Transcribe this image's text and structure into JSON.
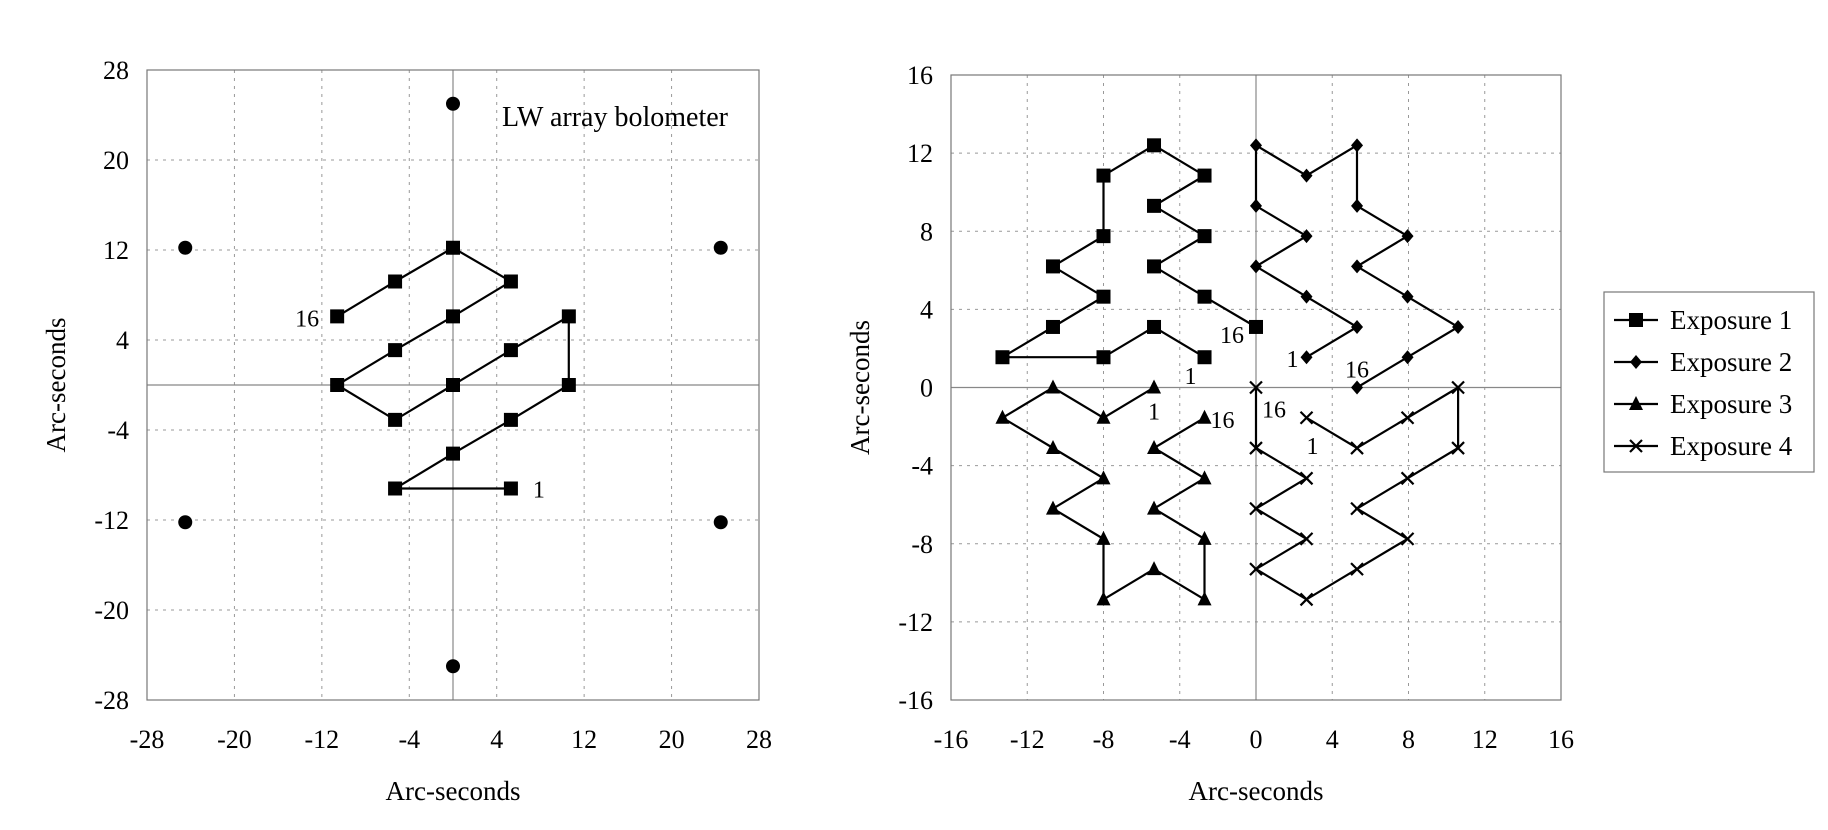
{
  "chart_data": [
    {
      "type": "scatter",
      "title": "LW array bolometer",
      "xlabel": "Arc-seconds",
      "ylabel": "Arc-seconds",
      "xlim": [
        -28,
        28
      ],
      "ylim": [
        -28,
        28
      ],
      "xticks": [
        "-28",
        "-20",
        "-12",
        "-4",
        "4",
        "12",
        "20",
        "28"
      ],
      "yticks": [
        "28",
        "20",
        "12",
        "4",
        "-4",
        "-12",
        "-20",
        "-28"
      ],
      "grid": true,
      "series": [
        {
          "marker": "circle",
          "line": false,
          "points": [
            [
              0,
              25
            ],
            [
              -24.5,
              12.2
            ],
            [
              24.5,
              12.2
            ],
            [
              -24.5,
              -12.2
            ],
            [
              24.5,
              -12.2
            ],
            [
              0,
              -25
            ]
          ]
        },
        {
          "marker": "square",
          "line": true,
          "points": [
            [
              5.3,
              -9.2
            ],
            [
              -5.3,
              -9.2
            ],
            [
              0,
              -6.1
            ],
            [
              5.3,
              -3.1
            ],
            [
              10.6,
              0
            ],
            [
              10.6,
              6.1
            ],
            [
              5.3,
              3.1
            ],
            [
              0,
              0
            ],
            [
              -5.3,
              -3.1
            ],
            [
              -10.6,
              0
            ],
            [
              -5.3,
              3.1
            ],
            [
              0,
              6.1
            ],
            [
              5.3,
              9.2
            ],
            [
              0,
              12.2
            ],
            [
              -5.3,
              9.2
            ],
            [
              -10.6,
              6.1
            ]
          ]
        }
      ],
      "annotations": [
        {
          "text": "1",
          "x": 5.3,
          "y": -9.2
        },
        {
          "text": "16",
          "x": -10.6,
          "y": 6.1
        }
      ]
    },
    {
      "type": "line",
      "xlabel": "Arc-seconds",
      "ylabel": "Arc-seconds",
      "xlim": [
        -16,
        16
      ],
      "ylim": [
        -16,
        16
      ],
      "xticks": [
        "-16",
        "-12",
        "-8",
        "-4",
        "0",
        "4",
        "8",
        "12",
        "16"
      ],
      "yticks": [
        "16",
        "12",
        "8",
        "4",
        "0",
        "-4",
        "-8",
        "-12",
        "-16"
      ],
      "grid": true,
      "legend": "right",
      "series": [
        {
          "name": "Exposure 1",
          "marker": "square",
          "points": [
            [
              -2.7,
              1.55
            ],
            [
              -5.35,
              3.1
            ],
            [
              -8.0,
              1.55
            ],
            [
              -13.3,
              1.55
            ],
            [
              -10.65,
              3.1
            ],
            [
              -8.0,
              4.65
            ],
            [
              -10.65,
              6.2
            ],
            [
              -8.0,
              7.75
            ],
            [
              -8.0,
              10.85
            ],
            [
              -5.35,
              12.4
            ],
            [
              -2.7,
              10.85
            ],
            [
              -5.35,
              9.3
            ],
            [
              -2.7,
              7.75
            ],
            [
              -5.35,
              6.2
            ],
            [
              -2.7,
              4.65
            ],
            [
              0,
              3.1
            ]
          ]
        },
        {
          "name": "Exposure 2",
          "marker": "diamond",
          "points": [
            [
              2.65,
              1.55
            ],
            [
              5.3,
              3.1
            ],
            [
              2.65,
              4.65
            ],
            [
              0,
              6.2
            ],
            [
              2.65,
              7.75
            ],
            [
              0,
              9.3
            ],
            [
              0,
              12.4
            ],
            [
              2.65,
              10.85
            ],
            [
              5.3,
              12.4
            ],
            [
              5.3,
              9.3
            ],
            [
              7.95,
              7.75
            ],
            [
              5.3,
              6.2
            ],
            [
              7.95,
              4.65
            ],
            [
              10.6,
              3.1
            ],
            [
              7.95,
              1.55
            ],
            [
              5.3,
              0
            ]
          ]
        },
        {
          "name": "Exposure 3",
          "marker": "triangle",
          "points": [
            [
              -5.35,
              0
            ],
            [
              -8.0,
              -1.55
            ],
            [
              -10.65,
              0
            ],
            [
              -13.3,
              -1.55
            ],
            [
              -10.65,
              -3.1
            ],
            [
              -8.0,
              -4.65
            ],
            [
              -10.65,
              -6.2
            ],
            [
              -8.0,
              -7.75
            ],
            [
              -8.0,
              -10.85
            ],
            [
              -5.35,
              -9.3
            ],
            [
              -2.7,
              -10.85
            ],
            [
              -2.7,
              -7.75
            ],
            [
              -5.35,
              -6.2
            ],
            [
              -2.7,
              -4.65
            ],
            [
              -5.35,
              -3.1
            ],
            [
              -2.7,
              -1.55
            ]
          ]
        },
        {
          "name": "Exposure 4",
          "marker": "x",
          "points": [
            [
              2.65,
              -1.55
            ],
            [
              5.3,
              -3.1
            ],
            [
              7.95,
              -1.55
            ],
            [
              10.6,
              0
            ],
            [
              10.6,
              -3.1
            ],
            [
              7.95,
              -4.65
            ],
            [
              5.3,
              -6.2
            ],
            [
              7.95,
              -7.75
            ],
            [
              5.3,
              -9.3
            ],
            [
              2.65,
              -10.85
            ],
            [
              0,
              -9.3
            ],
            [
              2.65,
              -7.75
            ],
            [
              0,
              -6.2
            ],
            [
              2.65,
              -4.65
            ],
            [
              0,
              -3.1
            ],
            [
              0,
              0
            ]
          ]
        }
      ],
      "annotations": [
        {
          "text": "1",
          "x": -2.7,
          "y": 1.55
        },
        {
          "text": "16",
          "x": 0,
          "y": 3.1
        },
        {
          "text": "1",
          "x": 2.65,
          "y": 1.55
        },
        {
          "text": "16",
          "x": 5.3,
          "y": 0
        },
        {
          "text": "1",
          "x": -5.35,
          "y": 0
        },
        {
          "text": "16",
          "x": -2.7,
          "y": -1.55
        },
        {
          "text": "1",
          "x": 2.65,
          "y": -1.55
        },
        {
          "text": "16",
          "x": 0,
          "y": 0
        }
      ]
    }
  ]
}
